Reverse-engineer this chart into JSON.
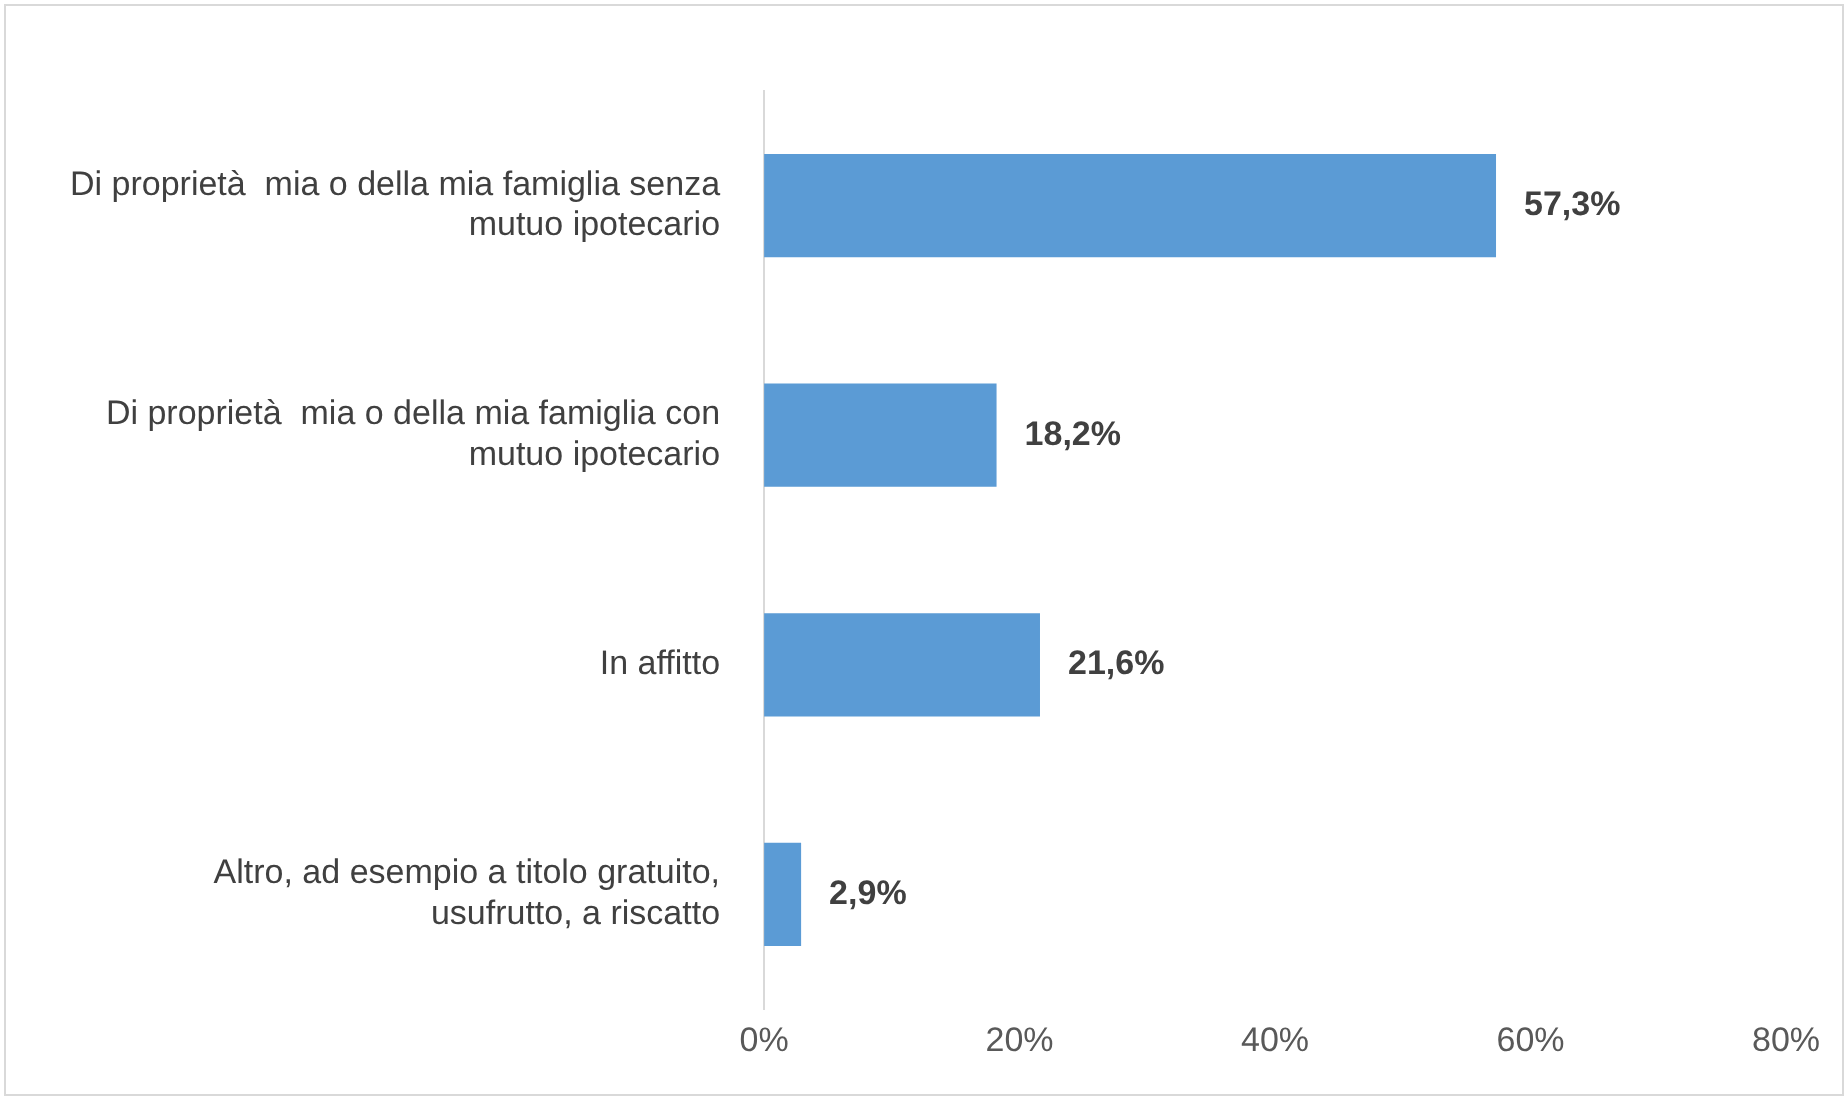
{
  "chart_data": {
    "type": "bar",
    "orientation": "horizontal",
    "categories": [
      "Di proprietà  mia o della mia famiglia senza mutuo ipotecario",
      "Di proprietà  mia o della mia famiglia con mutuo ipotecario",
      "In affitto",
      "Altro, ad esempio a titolo gratuito, usufrutto, a riscatto"
    ],
    "values": [
      57.3,
      18.2,
      21.6,
      2.9
    ],
    "value_labels": [
      "57,3%",
      "18,2%",
      "21,6%",
      "2,9%"
    ],
    "color": "#5b9bd5",
    "xlim": [
      0,
      80
    ],
    "xticks": [
      {
        "value": 0,
        "label": "0%"
      },
      {
        "value": 20,
        "label": "20%"
      },
      {
        "value": 40,
        "label": "40%"
      },
      {
        "value": 60,
        "label": "60%"
      },
      {
        "value": 80,
        "label": "80%"
      }
    ],
    "grid": false,
    "legend": false
  }
}
